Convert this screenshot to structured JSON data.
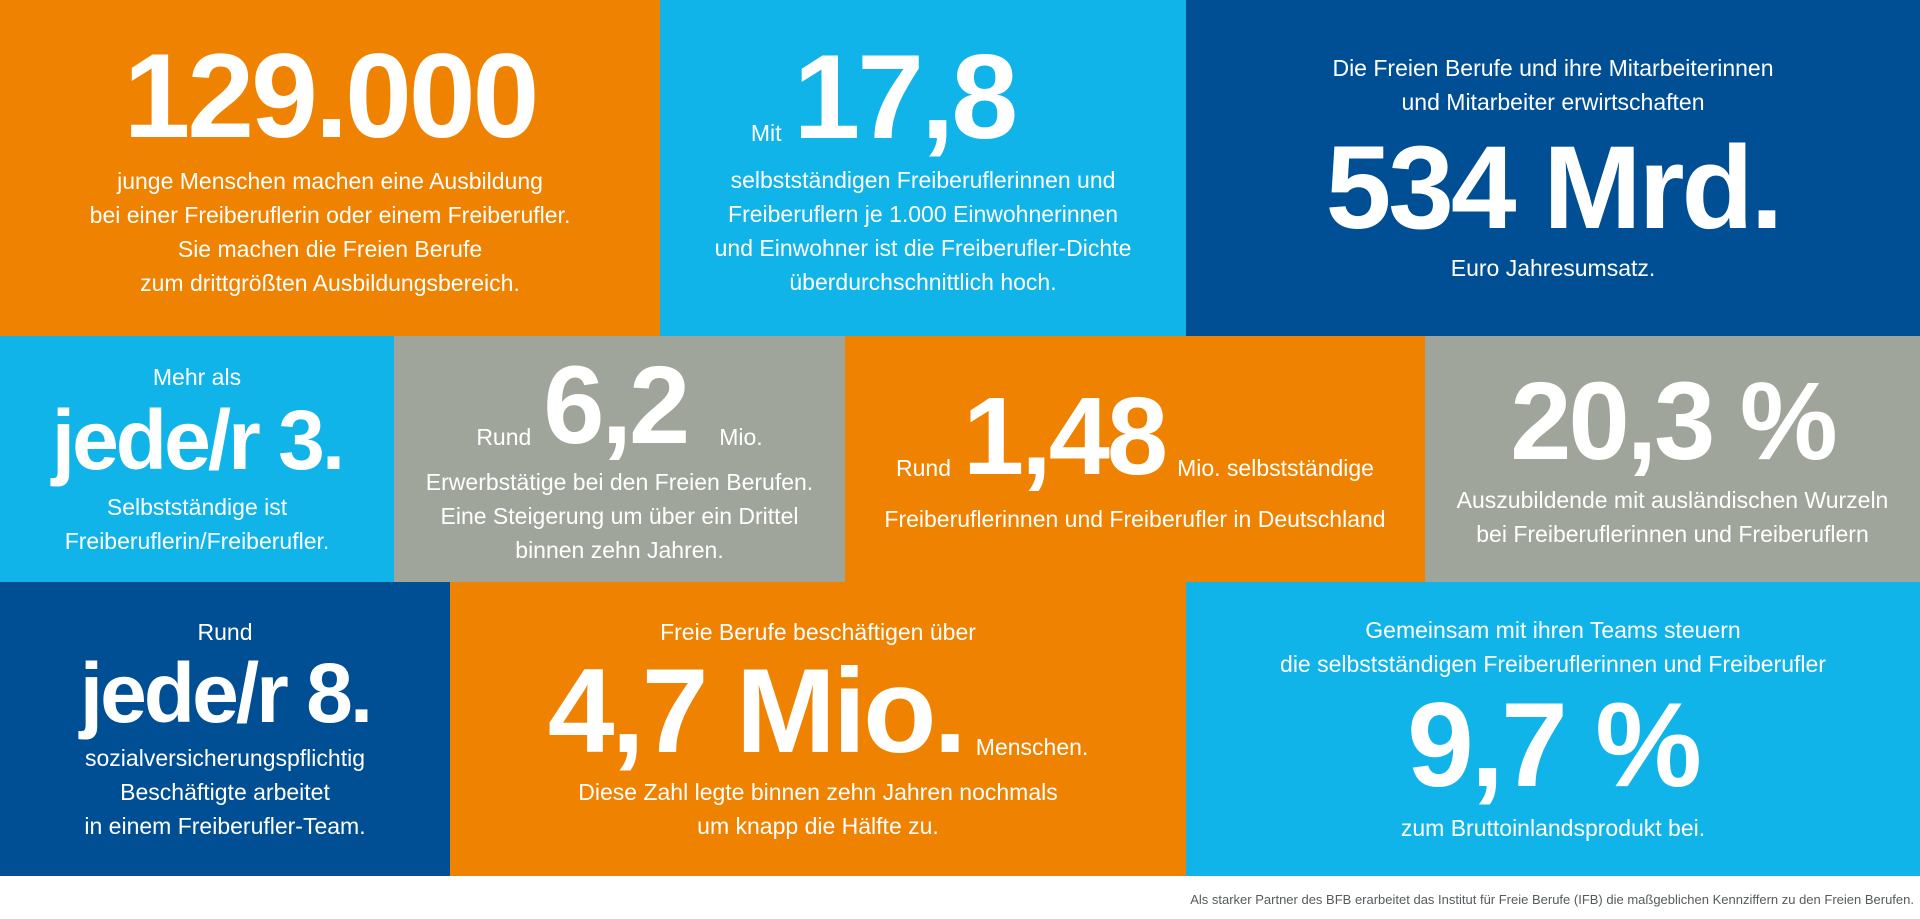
{
  "tiles": {
    "t1": {
      "number": "129.000",
      "lines": [
        "junge Menschen machen eine Ausbildung",
        "bei einer Freiberuflerin oder einem Freiberufler.",
        "Sie machen die Freien Berufe",
        "zum drittgrößten Ausbildungsbereich."
      ],
      "color": "#ef8200"
    },
    "t2": {
      "lead": "Mit",
      "number": "17,8",
      "lines": [
        "selbstständigen Freiberuflerinnen und",
        "Freiberuflern je 1.000 Einwohnerinnen",
        "und Einwohner ist die Freiberufler-Dichte",
        "überdurchschnittlich hoch."
      ],
      "color": "#10b4e8"
    },
    "t3": {
      "lines_top": [
        "Die Freien Berufe und ihre Mitarbeiterinnen",
        "und Mitarbeiter erwirtschaften"
      ],
      "number": "534 Mrd.",
      "lines_bottom": [
        "Euro Jahresumsatz."
      ],
      "color": "#004f94"
    },
    "t4": {
      "lines_top": [
        "Mehr als"
      ],
      "number": "jede/r 3.",
      "lines_bottom": [
        "Selbstständige ist",
        "Freiberuflerin/Freiberufler."
      ],
      "color": "#10b4e8"
    },
    "t5": {
      "lead": "Rund",
      "number": "6,2",
      "trail": "Mio.",
      "lines": [
        "Erwerbstätige bei den Freien Berufen.",
        "Eine Steigerung um über ein Drittel",
        "binnen zehn Jahren."
      ],
      "color": "#a0a59b"
    },
    "t6": {
      "lead": "Rund",
      "number": "1,48",
      "trail": "Mio. selbstständige",
      "lines": [
        "Freiberuflerinnen und Freiberufler in Deutschland"
      ],
      "color": "#ef8200"
    },
    "t7": {
      "number": "20,3 %",
      "lines": [
        "Auszubildende mit ausländischen Wurzeln",
        "bei Freiberuflerinnen und Freiberuflern"
      ],
      "color": "#a0a59b"
    },
    "t8": {
      "lines_top": [
        "Rund"
      ],
      "number": "jede/r 8.",
      "lines_bottom": [
        "sozialversicherungspflichtig",
        "Beschäftigte arbeitet",
        "in einem Freiberufler-Team."
      ],
      "color": "#004f94"
    },
    "t9": {
      "lines_top": [
        "Freie Berufe beschäftigen über"
      ],
      "number": "4,7 Mio.",
      "trail": "Menschen.",
      "lines_bottom": [
        "Diese Zahl legte binnen zehn Jahren nochmals",
        "um knapp die Hälfte zu."
      ],
      "color": "#ef8200"
    },
    "t10": {
      "lines_top": [
        "Gemeinsam mit ihren Teams steuern",
        "die selbstständigen Freiberuflerinnen und Freiberufler"
      ],
      "number": "9,7 %",
      "lines_bottom": [
        "zum Bruttoinlandsprodukt bei."
      ],
      "color": "#10b4e8"
    }
  },
  "footer": "Als starker Partner des BFB erarbeitet das Institut für Freie Berufe (IFB) die maßgeblichen Kennziffern zu den Freien Berufen."
}
